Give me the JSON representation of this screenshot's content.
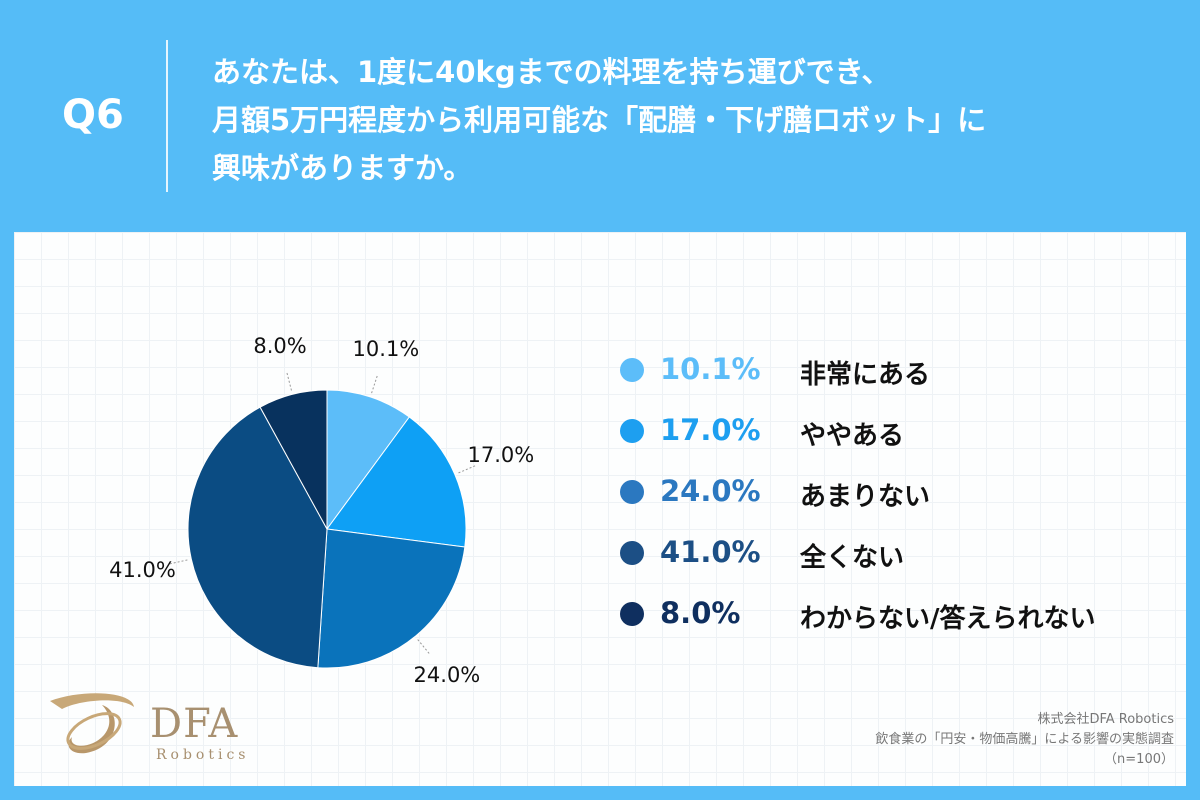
{
  "question": {
    "label": "Q6",
    "lines": [
      "あなたは、1度に40kgまでの料理を持ち運びでき、",
      "月額5万円程度から利用可能な「配膳・下げ膳ロボット」に",
      "興味がありますか。"
    ]
  },
  "chart_data": {
    "type": "pie",
    "categories": [
      "非常にある",
      "ややある",
      "あまりない",
      "全くない",
      "わからない/答えられない"
    ],
    "values": [
      10.1,
      17.0,
      24.0,
      41.0,
      8.0
    ],
    "colors": [
      "#5cbdf9",
      "#0ea0f5",
      "#0a73bb",
      "#0b4c83",
      "#08325e"
    ],
    "slice_labels": [
      "10.1%",
      "17.0%",
      "24.0%",
      "41.0%",
      "8.0%"
    ]
  },
  "legend": [
    {
      "pct": "10.1%",
      "label": "非常にある",
      "color": "#5cbdf9"
    },
    {
      "pct": "17.0%",
      "label": "ややある",
      "color": "#1d9ff0"
    },
    {
      "pct": "24.0%",
      "label": "あまりない",
      "color": "#2b78c0"
    },
    {
      "pct": "41.0%",
      "label": "全くない",
      "color": "#1c4f85"
    },
    {
      "pct": "8.0%",
      "label": "わからない/答えられない",
      "color": "#0f2f5f"
    }
  ],
  "logo": {
    "name": "DFA",
    "sub": "Robotics"
  },
  "source": {
    "company": "株式会社DFA Robotics",
    "survey": "飲食業の「円安・物価高騰」による影響の実態調査",
    "n": "（n=100）"
  }
}
